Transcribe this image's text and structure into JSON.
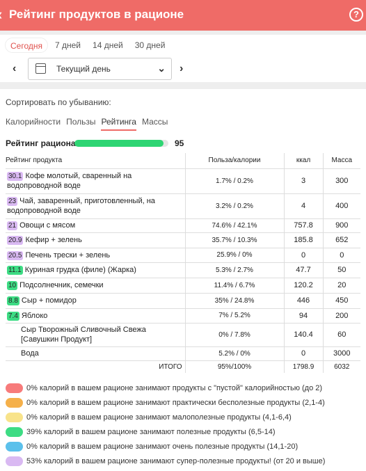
{
  "header": {
    "title": "Рейтинг продуктов в рационе",
    "back_icon": "chevron-left-icon",
    "help_icon": "question-icon",
    "help_glyph": "?"
  },
  "period": {
    "tabs": [
      "Сегодня",
      "7 дней",
      "14 дней",
      "30 дней"
    ],
    "active": 0,
    "date_value": "Текущий день"
  },
  "sort": {
    "label": "Сортировать по убыванию:",
    "tabs": [
      "Калорийности",
      "Пользы",
      "Рейтинга",
      "Массы"
    ],
    "active": 2
  },
  "rating": {
    "label": "Рейтинг рациона",
    "value": "95",
    "fill_percent": 95
  },
  "table": {
    "headers": [
      "Рейтинг продукта",
      "Польза/калории",
      "ккал",
      "Масса"
    ],
    "rows": [
      {
        "score": "30.1",
        "color": "#d9b9f2",
        "name": "Кофе молотый, сваренный на водопроводной воде",
        "ratio": "1.7% / 0.2%",
        "kcal": "3",
        "mass": "300"
      },
      {
        "score": "23",
        "color": "#d9b9f2",
        "name": "Чай, заваренный, приготовленный, на водопроводной воде",
        "ratio": "3.2% / 0.2%",
        "kcal": "4",
        "mass": "400"
      },
      {
        "score": "21",
        "color": "#d9b9f2",
        "name": "Овощи с мясом",
        "ratio": "74.6% / 42.1%",
        "kcal": "757.8",
        "mass": "900"
      },
      {
        "score": "20.9",
        "color": "#d9b9f2",
        "name": "Кефир + зелень",
        "ratio": "35.7% / 10.3%",
        "kcal": "185.8",
        "mass": "652"
      },
      {
        "score": "20.5",
        "color": "#d9b9f2",
        "name": "Печень трески + зелень",
        "ratio": "25.9% / 0%",
        "kcal": "0",
        "mass": "0"
      },
      {
        "score": "11.1",
        "color": "#3ddc84",
        "name": "Куриная грудка (филе) (Жарка)",
        "ratio": "5.3% / 2.7%",
        "kcal": "47.7",
        "mass": "50"
      },
      {
        "score": "10",
        "color": "#3ddc84",
        "name": "Подсолнечник, семечки",
        "ratio": "11.4% / 6.7%",
        "kcal": "120.2",
        "mass": "20"
      },
      {
        "score": "8.8",
        "color": "#3ddc84",
        "name": "Сыр + помидор",
        "ratio": "35% / 24.8%",
        "kcal": "446",
        "mass": "450"
      },
      {
        "score": "7.4",
        "color": "#3ddc84",
        "name": "Яблоко",
        "ratio": "7% / 5.2%",
        "kcal": "94",
        "mass": "200"
      },
      {
        "score": "",
        "color": "",
        "name": "Сыр Творожный Сливочный Свежа [Савушкин Продукт]",
        "ratio": "0% / 7.8%",
        "kcal": "140.4",
        "mass": "60"
      },
      {
        "score": "",
        "color": "",
        "name": "Вода",
        "ratio": "5.2% / 0%",
        "kcal": "0",
        "mass": "3000"
      }
    ],
    "total": {
      "label": "ИТОГО",
      "ratio": "95%/100%",
      "kcal": "1798.9",
      "mass": "6032"
    }
  },
  "legend": [
    {
      "color": "#f77b7b",
      "text": "0% калорий в вашем рационе занимают продукты с \"пустой\" калорийностью (до 2)"
    },
    {
      "color": "#f5b04a",
      "text": "0% калорий в вашем рационе занимают практически бесполезные продукты (2,1-4)"
    },
    {
      "color": "#f8e38a",
      "text": "0% калорий в вашем рационе занимают малополезные продукты (4,1-6,4)"
    },
    {
      "color": "#3ddc84",
      "text": "39% калорий в вашем рационе занимают полезные продукты (6,5-14)"
    },
    {
      "color": "#5bc0eb",
      "text": "0% калорий в вашем рационе занимают очень полезные продукты (14,1-20)"
    },
    {
      "color": "#d9b9f2",
      "text": "53% калорий в вашем рационе занимают супер-полезные продукты! (от 20 и выше)"
    }
  ]
}
